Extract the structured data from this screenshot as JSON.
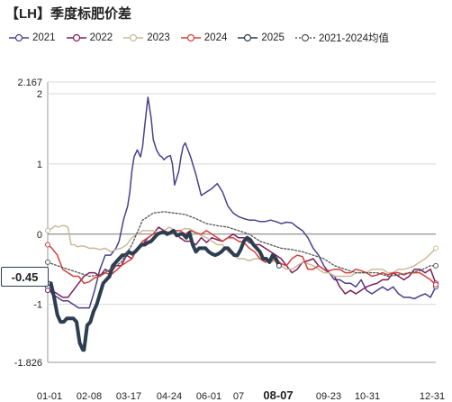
{
  "title": "【LH】季度标肥价差",
  "current_value_label": "-0.45",
  "chart_data": {
    "type": "line",
    "title": "【LH】季度标肥价差",
    "ylim": [
      -1.826,
      2.167
    ],
    "y_ticks": [
      "2.167",
      "2",
      "1",
      "0",
      "-1",
      "-1.826"
    ],
    "x_ticks": [
      "01-01",
      "02-08",
      "03-17",
      "04-24",
      "06-01",
      "07",
      "08-07",
      "09-23",
      "10-31",
      "12-31"
    ],
    "highlight_x_label": "08-07",
    "grid": "horizontal",
    "legend_position": "top",
    "series": [
      {
        "name": "2021",
        "color": "#4b3f8c",
        "width": 1.5,
        "dash": "",
        "x": [
          1,
          5,
          10,
          15,
          20,
          25,
          30,
          35,
          40,
          45,
          50,
          55,
          60,
          65,
          68,
          70,
          72,
          74,
          76,
          78,
          80,
          82,
          85,
          88,
          90,
          92,
          95,
          98,
          100,
          103,
          106,
          108,
          110,
          113,
          116,
          118,
          120,
          122,
          124,
          126,
          128,
          130,
          135,
          140,
          145,
          150,
          155,
          160,
          165,
          170,
          175,
          180,
          185,
          190,
          195,
          200,
          205,
          210,
          215,
          220,
          225,
          230,
          235,
          240,
          245,
          250,
          255,
          260,
          265,
          270,
          275,
          280,
          285,
          290,
          295,
          300,
          305,
          310,
          315,
          320,
          325,
          330,
          335,
          340,
          345,
          350,
          355,
          360,
          365
        ],
        "y": [
          -0.75,
          -0.85,
          -0.9,
          -0.95,
          -0.95,
          -1.0,
          -1.05,
          -1.05,
          -1.05,
          -0.8,
          -0.5,
          -0.3,
          -0.3,
          -0.2,
          -0.1,
          0.05,
          0.2,
          0.3,
          0.4,
          0.6,
          0.9,
          1.1,
          1.2,
          1.1,
          1.25,
          1.55,
          1.95,
          1.65,
          1.35,
          1.2,
          1.12,
          1.1,
          1.06,
          1.1,
          1.12,
          1.0,
          0.7,
          0.8,
          0.9,
          1.1,
          1.25,
          1.3,
          1.1,
          0.85,
          0.55,
          0.6,
          0.65,
          0.72,
          0.6,
          0.4,
          0.3,
          0.25,
          0.22,
          0.2,
          0.2,
          0.18,
          0.18,
          0.2,
          0.18,
          0.15,
          0.17,
          0.16,
          0.1,
          0.05,
          -0.05,
          -0.2,
          -0.3,
          -0.45,
          -0.55,
          -0.65,
          -0.65,
          -0.7,
          -0.7,
          -0.75,
          -0.65,
          -0.8,
          -0.85,
          -0.8,
          -0.75,
          -0.8,
          -0.75,
          -0.85,
          -0.9,
          -0.9,
          -0.92,
          -0.88,
          -0.85,
          -0.9,
          -0.75
        ]
      },
      {
        "name": "2022",
        "color": "#7e1e5c",
        "width": 1.5,
        "dash": "",
        "x": [
          1,
          5,
          10,
          15,
          20,
          25,
          30,
          35,
          40,
          45,
          50,
          55,
          60,
          65,
          70,
          75,
          80,
          85,
          90,
          95,
          100,
          105,
          110,
          115,
          120,
          125,
          130,
          135,
          140,
          145,
          150,
          155,
          160,
          165,
          170,
          175,
          180,
          185,
          190,
          195,
          200,
          205,
          210,
          215,
          220,
          225,
          230,
          235,
          240,
          245,
          250,
          255,
          260,
          265,
          270,
          275,
          280,
          285,
          290,
          295,
          300,
          305,
          310,
          315,
          320,
          325,
          330,
          335,
          340,
          345,
          350,
          355,
          360,
          365
        ],
        "y": [
          -0.8,
          -0.8,
          -0.85,
          -0.9,
          -0.9,
          -0.8,
          -0.7,
          -0.6,
          -0.55,
          -0.55,
          -0.6,
          -0.5,
          -0.55,
          -0.45,
          -0.45,
          -0.3,
          -0.35,
          -0.2,
          -0.15,
          -0.05,
          0.0,
          0.1,
          0.05,
          0.0,
          0.05,
          -0.05,
          -0.1,
          -0.1,
          -0.15,
          -0.05,
          -0.12,
          -0.05,
          -0.08,
          -0.1,
          -0.05,
          0.0,
          -0.05,
          -0.05,
          -0.12,
          -0.15,
          -0.15,
          -0.2,
          -0.25,
          -0.3,
          -0.35,
          -0.45,
          -0.55,
          -0.5,
          -0.4,
          -0.38,
          -0.35,
          -0.45,
          -0.5,
          -0.55,
          -0.6,
          -0.75,
          -0.85,
          -0.8,
          -0.85,
          -0.8,
          -0.75,
          -0.72,
          -0.7,
          -0.65,
          -0.65,
          -0.55,
          -0.6,
          -0.65,
          -0.6,
          -0.5,
          -0.5,
          -0.55,
          -0.5,
          -0.7
        ]
      },
      {
        "name": "2023",
        "color": "#cbb99a",
        "width": 1.5,
        "dash": "",
        "x": [
          1,
          5,
          8,
          11,
          14,
          17,
          20,
          23,
          26,
          29,
          32,
          35,
          40,
          45,
          50,
          55,
          60,
          65,
          70,
          75,
          80,
          85,
          90,
          95,
          100,
          105,
          110,
          115,
          120,
          125,
          130,
          135,
          140,
          145,
          150,
          155,
          160,
          165,
          170,
          175,
          180,
          185,
          190,
          195,
          200,
          205,
          210,
          215,
          220,
          225,
          230,
          235,
          240,
          245,
          250,
          255,
          260,
          265,
          270,
          275,
          280,
          285,
          290,
          295,
          300,
          305,
          310,
          315,
          320,
          325,
          330,
          335,
          340,
          345,
          350,
          355,
          360,
          365
        ],
        "y": [
          0.05,
          0.08,
          0.12,
          0.1,
          0.12,
          0.12,
          0.1,
          -0.15,
          -0.15,
          -0.18,
          -0.17,
          -0.17,
          -0.2,
          -0.2,
          -0.22,
          -0.2,
          -0.25,
          -0.22,
          -0.2,
          -0.15,
          -0.05,
          0.0,
          0.05,
          0.05,
          0.05,
          0.02,
          0.05,
          0.1,
          0.05,
          0.05,
          0.08,
          0.07,
          0.02,
          -0.02,
          -0.05,
          -0.1,
          -0.15,
          -0.15,
          -0.25,
          -0.3,
          -0.35,
          -0.35,
          -0.38,
          -0.35,
          -0.35,
          -0.38,
          -0.4,
          -0.38,
          -0.45,
          -0.5,
          -0.5,
          -0.45,
          -0.4,
          -0.42,
          -0.45,
          -0.5,
          -0.55,
          -0.55,
          -0.6,
          -0.6,
          -0.6,
          -0.6,
          -0.55,
          -0.55,
          -0.55,
          -0.5,
          -0.5,
          -0.5,
          -0.55,
          -0.55,
          -0.5,
          -0.5,
          -0.48,
          -0.45,
          -0.4,
          -0.35,
          -0.28,
          -0.2
        ]
      },
      {
        "name": "2024",
        "color": "#d5403a",
        "width": 1.5,
        "dash": "",
        "x": [
          1,
          5,
          10,
          15,
          20,
          25,
          30,
          35,
          40,
          45,
          50,
          55,
          60,
          65,
          70,
          75,
          80,
          85,
          90,
          95,
          100,
          105,
          110,
          115,
          120,
          125,
          130,
          135,
          140,
          145,
          150,
          155,
          160,
          165,
          170,
          175,
          180,
          185,
          190,
          195,
          200,
          205,
          210,
          215,
          220,
          225,
          230,
          235,
          240,
          245,
          250,
          255,
          260,
          265,
          270,
          275,
          280,
          285,
          290,
          295,
          300,
          305,
          310,
          315,
          320,
          325,
          330,
          335,
          340,
          345,
          350,
          355,
          360,
          365
        ],
        "y": [
          -0.15,
          -0.2,
          -0.3,
          -0.5,
          -0.55,
          -0.6,
          -0.6,
          -0.7,
          -0.68,
          -0.62,
          -0.6,
          -0.55,
          -0.58,
          -0.52,
          -0.45,
          -0.4,
          -0.35,
          -0.2,
          -0.1,
          -0.05,
          0.0,
          0.02,
          0.05,
          0.02,
          0.05,
          0.05,
          0.0,
          0.05,
          0.02,
          0.0,
          0.05,
          0.0,
          -0.05,
          -0.1,
          -0.05,
          -0.05,
          -0.1,
          -0.12,
          -0.2,
          -0.25,
          -0.35,
          -0.4,
          -0.38,
          -0.35,
          -0.42,
          -0.45,
          -0.35,
          -0.3,
          -0.32,
          -0.5,
          -0.5,
          -0.45,
          -0.5,
          -0.52,
          -0.5,
          -0.5,
          -0.55,
          -0.55,
          -0.5,
          -0.52,
          -0.55,
          -0.6,
          -0.58,
          -0.55,
          -0.58,
          -0.55,
          -0.55,
          -0.58,
          -0.55,
          -0.55,
          -0.55,
          -0.6,
          -0.65,
          -0.72
        ]
      },
      {
        "name": "2025",
        "color": "#2c3e50",
        "width": 4,
        "dash": "",
        "x": [
          1,
          4,
          7,
          10,
          13,
          16,
          19,
          22,
          25,
          28,
          31,
          34,
          35,
          38,
          41,
          44,
          47,
          50,
          53,
          56,
          59,
          62,
          65,
          68,
          71,
          74,
          77,
          80,
          83,
          86,
          89,
          92,
          95,
          98,
          101,
          104,
          107,
          110,
          113,
          116,
          119,
          122,
          125,
          128,
          131,
          134,
          137,
          140,
          143,
          146,
          149,
          152,
          155,
          158,
          161,
          164,
          167,
          170,
          173,
          176,
          179,
          182,
          185,
          188,
          191,
          194,
          197,
          200,
          203,
          206,
          209,
          212,
          215,
          218
        ],
        "y": [
          -0.7,
          -0.7,
          -0.9,
          -1.15,
          -1.25,
          -1.25,
          -1.2,
          -1.2,
          -1.2,
          -1.25,
          -1.55,
          -1.65,
          -1.65,
          -1.3,
          -1.25,
          -1.1,
          -1.0,
          -0.85,
          -0.7,
          -0.65,
          -0.6,
          -0.45,
          -0.4,
          -0.35,
          -0.3,
          -0.3,
          -0.25,
          -0.28,
          -0.25,
          -0.2,
          -0.15,
          -0.15,
          -0.12,
          -0.1,
          -0.05,
          0.0,
          0.02,
          0.03,
          0.0,
          0.02,
          0.05,
          -0.02,
          0.0,
          0.0,
          -0.05,
          0.02,
          -0.15,
          -0.25,
          -0.2,
          -0.2,
          -0.2,
          -0.25,
          -0.28,
          -0.3,
          -0.28,
          -0.25,
          -0.2,
          -0.2,
          -0.25,
          -0.3,
          -0.3,
          -0.22,
          -0.1,
          -0.05,
          -0.08,
          -0.15,
          -0.2,
          -0.25,
          -0.35,
          -0.35,
          -0.4,
          -0.3,
          -0.35,
          -0.45
        ]
      },
      {
        "name": "2021-2024均值",
        "color": "#555555",
        "width": 1.3,
        "dash": "2,2",
        "x": [
          1,
          10,
          20,
          30,
          40,
          50,
          60,
          70,
          80,
          90,
          100,
          110,
          120,
          130,
          140,
          150,
          160,
          170,
          180,
          190,
          200,
          210,
          220,
          230,
          240,
          250,
          260,
          270,
          280,
          290,
          300,
          310,
          320,
          330,
          340,
          350,
          360,
          365
        ],
        "y": [
          -0.4,
          -0.45,
          -0.5,
          -0.55,
          -0.6,
          -0.58,
          -0.5,
          -0.4,
          -0.15,
          0.2,
          0.3,
          0.32,
          0.3,
          0.28,
          0.22,
          0.15,
          0.12,
          0.1,
          0.05,
          0.0,
          -0.1,
          -0.15,
          -0.2,
          -0.22,
          -0.25,
          -0.3,
          -0.35,
          -0.45,
          -0.5,
          -0.55,
          -0.55,
          -0.55,
          -0.6,
          -0.58,
          -0.55,
          -0.52,
          -0.45,
          -0.45
        ]
      }
    ]
  }
}
